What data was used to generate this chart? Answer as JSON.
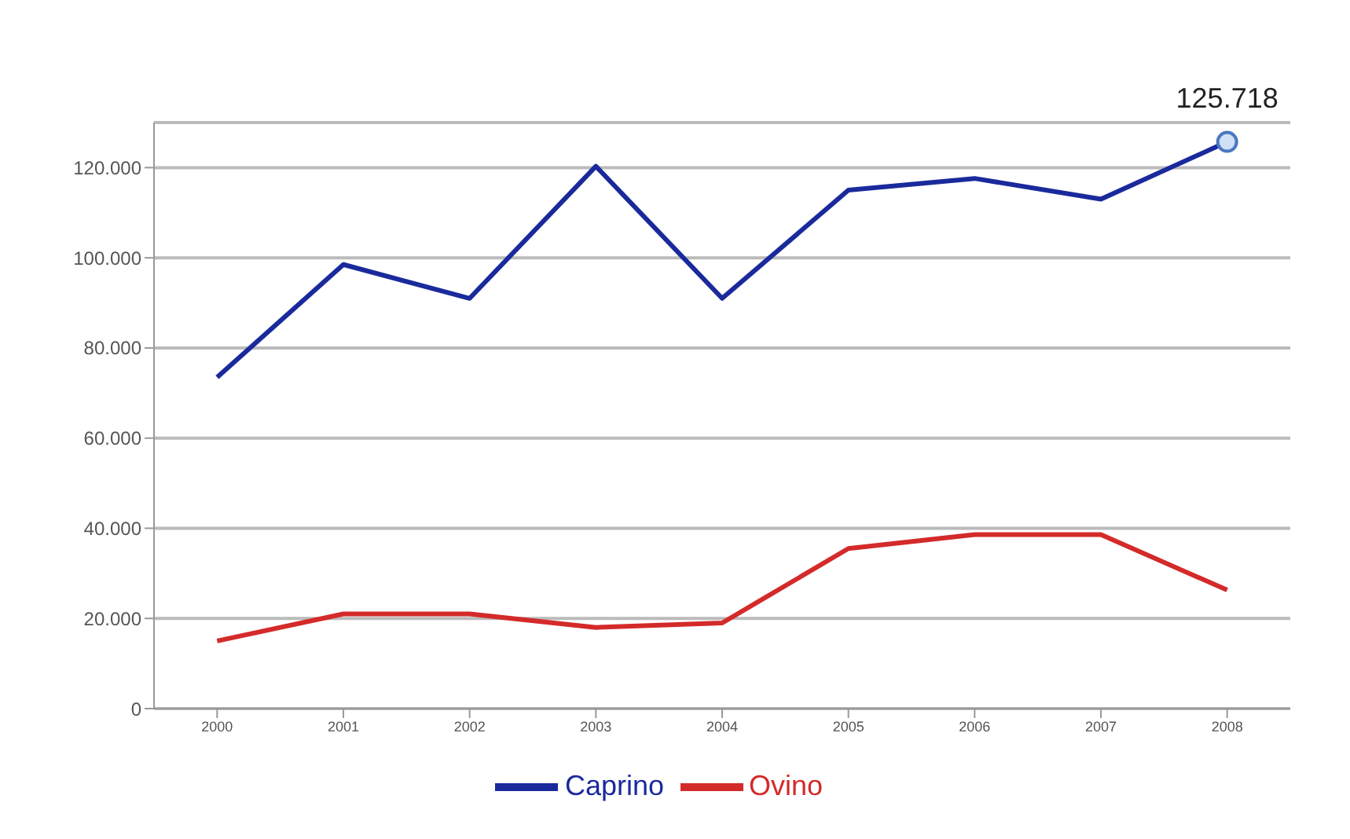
{
  "chart_data": {
    "type": "line",
    "categories": [
      "2000",
      "2001",
      "2002",
      "2003",
      "2004",
      "2005",
      "2006",
      "2007",
      "2008"
    ],
    "series": [
      {
        "name": "Caprino",
        "color": "#1a2a9c",
        "values": [
          73500,
          98500,
          91000,
          120300,
          91000,
          115000,
          117600,
          113000,
          125718
        ]
      },
      {
        "name": "Ovino",
        "color": "#d42a2a",
        "values": [
          15000,
          21000,
          21000,
          18000,
          19000,
          35500,
          38600,
          38600,
          26300
        ]
      }
    ],
    "ylim": [
      0,
      130000
    ],
    "yticks": [
      {
        "value": 0,
        "label": "0"
      },
      {
        "value": 20000,
        "label": "20.000"
      },
      {
        "value": 40000,
        "label": "40.000"
      },
      {
        "value": 60000,
        "label": "60.000"
      },
      {
        "value": 80000,
        "label": "80.000"
      },
      {
        "value": 100000,
        "label": "100.000"
      },
      {
        "value": 120000,
        "label": "120.000"
      }
    ],
    "annotations": [
      {
        "text": "125.718",
        "x": "2008",
        "y": 125718
      }
    ],
    "grid": "y",
    "legend": "bottom",
    "marker": "none",
    "line_style": "solid"
  }
}
